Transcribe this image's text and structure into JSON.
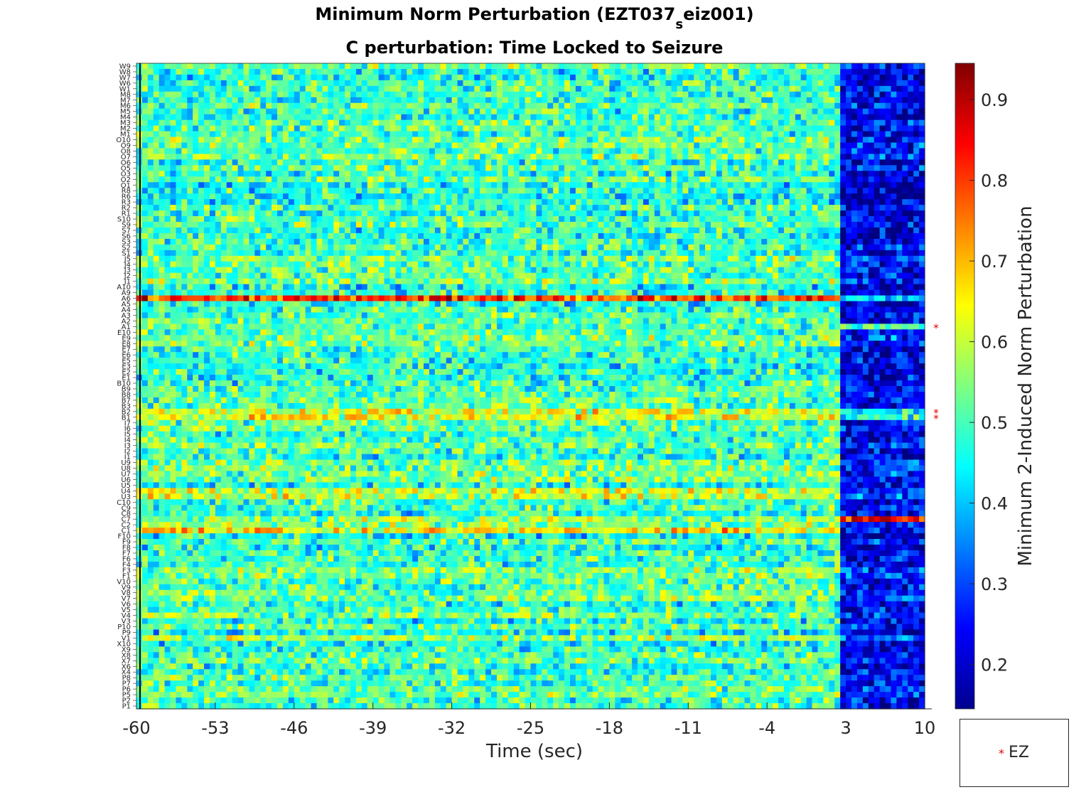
{
  "chart_data": {
    "type": "heatmap",
    "title_main": "Minimum Norm Perturbation (EZT037",
    "title_sub": "s",
    "title_end": "eiz001)",
    "subtitle": "C perturbation:  Time Locked to Seizure",
    "xlabel": "Time (sec)",
    "colorbar_label": "Minimum 2-Induced Norm Perturbation",
    "colormap": "jet",
    "x_tick_labels": [
      "-60",
      "-53",
      "-46",
      "-39",
      "-32",
      "-25",
      "-18",
      "-11",
      "-4",
      "3",
      "10"
    ],
    "x_tick_values": [
      -60,
      -53,
      -46,
      -39,
      -32,
      -25,
      -18,
      -11,
      -4,
      3,
      10
    ],
    "xlim": [
      -60,
      10
    ],
    "time_window_count": 140,
    "seizure_onset_time": 3,
    "clim": [
      0.145,
      0.945
    ],
    "colorbar_ticks": [
      "0.2",
      "0.3",
      "0.4",
      "0.5",
      "0.6",
      "0.7",
      "0.8",
      "0.9"
    ],
    "colorbar_tick_values": [
      0.2,
      0.3,
      0.4,
      0.5,
      0.6,
      0.7,
      0.8,
      0.9
    ],
    "channels": [
      "W9",
      "W8",
      "W7",
      "W6",
      "W1",
      "M8",
      "M7",
      "M6",
      "M5",
      "M4",
      "M3",
      "M2",
      "M1",
      "O10",
      "O9",
      "O8",
      "O7",
      "O6",
      "O5",
      "O3",
      "O2",
      "O1",
      "R8",
      "R6",
      "R3",
      "R2",
      "R1",
      "S10",
      "S9",
      "S7",
      "S6",
      "S3",
      "S2",
      "S1",
      "J5",
      "J4",
      "J3",
      "J2",
      "J1",
      "A10",
      "A9",
      "A6",
      "A5",
      "A4",
      "A3",
      "A2",
      "A1",
      "E10",
      "E9",
      "E8",
      "E7",
      "E6",
      "E5",
      "E3",
      "E2",
      "E1",
      "B10",
      "B9",
      "B8",
      "B7",
      "B3",
      "B2",
      "B1",
      "I7",
      "I6",
      "I5",
      "I4",
      "I3",
      "I2",
      "I1",
      "U9",
      "U8",
      "U7",
      "U6",
      "U5",
      "U4",
      "U3",
      "C10",
      "C9",
      "C8",
      "C7",
      "C2",
      "C1",
      "F10",
      "F9",
      "F8",
      "F7",
      "F6",
      "F4",
      "F3",
      "F1",
      "V10",
      "V9",
      "V8",
      "V7",
      "V6",
      "V5",
      "V4",
      "V3",
      "P10",
      "P9",
      "V1",
      "X10",
      "X9",
      "X8",
      "X7",
      "X6",
      "X4",
      "P8",
      "P7",
      "P6",
      "P5",
      "P2",
      "P1"
    ],
    "ez_channels": [
      "A1",
      "B2",
      "B1"
    ],
    "row_profiles": {
      "A6": {
        "pre": 0.76,
        "post": 0.36
      },
      "C1": {
        "pre": 0.7,
        "post": 0.28
      },
      "C7": {
        "pre": 0.52,
        "post": 0.82
      },
      "O10": {
        "pre": 0.52,
        "post": 0.22
      },
      "A1": {
        "pre": 0.52,
        "post": 0.52
      },
      "B1": {
        "pre": 0.6,
        "post": 0.45
      },
      "B2": {
        "pre": 0.62,
        "post": 0.45
      },
      "U4": {
        "pre": 0.65,
        "post": 0.32
      },
      "U3": {
        "pre": 0.62,
        "post": 0.32
      },
      "V1": {
        "pre": 0.62,
        "post": 0.4
      },
      "default": {
        "pre": 0.5,
        "post": 0.24
      }
    },
    "legend": [
      {
        "marker": "*",
        "color": "#e00000",
        "label": "EZ"
      }
    ]
  }
}
